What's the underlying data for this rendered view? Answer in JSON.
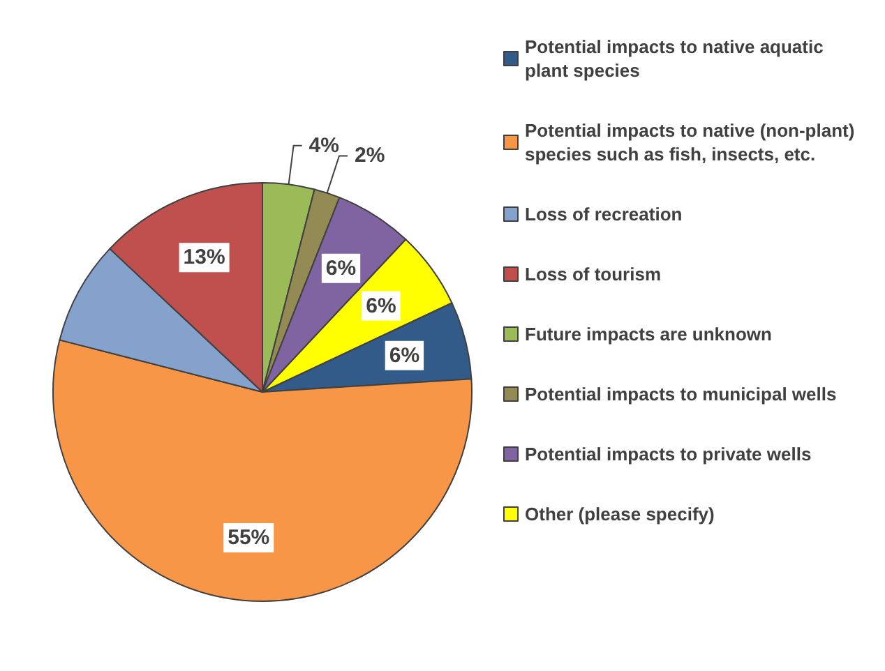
{
  "chart_data": {
    "type": "pie",
    "categories": [
      "Potential impacts to native aquatic plant species",
      "Potential impacts to native (non-plant) species such as fish, insects, etc.",
      "Loss of recreation",
      "Loss of tourism",
      "Future impacts are unknown",
      "Potential impacts to municipal wells",
      "Potential impacts to private wells",
      "Other (please specify)"
    ],
    "values": [
      6,
      55,
      8,
      13,
      4,
      2,
      6,
      6
    ],
    "value_labels": [
      "6%",
      "55%",
      null,
      "13%",
      "4%",
      "2%",
      "6%",
      "6%"
    ],
    "colors": [
      "#335b89",
      "#f79646",
      "#84a2cc",
      "#c0504d",
      "#9bbb59",
      "#948a54",
      "#8064a2",
      "#ffff00"
    ],
    "legend": "right"
  }
}
